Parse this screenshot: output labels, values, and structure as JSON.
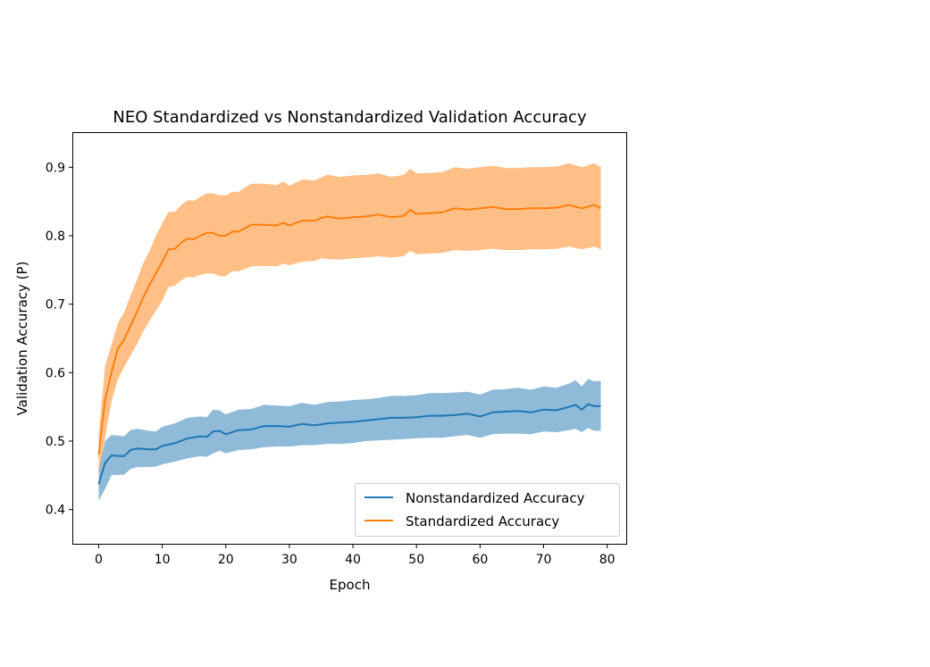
{
  "chart_data": {
    "type": "line",
    "title": "NEO Standardized vs Nonstandardized Validation Accuracy",
    "xlabel": "Epoch",
    "ylabel": "Validation Accuracy (P)",
    "xlim": [
      -4,
      83
    ],
    "ylim": [
      0.35,
      0.95
    ],
    "xticks": [
      0,
      10,
      20,
      30,
      40,
      50,
      60,
      70,
      80
    ],
    "yticks": [
      0.4,
      0.5,
      0.6,
      0.7,
      0.8,
      0.9
    ],
    "xtick_labels": [
      "0",
      "10",
      "20",
      "30",
      "40",
      "50",
      "60",
      "70",
      "80"
    ],
    "ytick_labels": [
      "0.4",
      "0.5",
      "0.6",
      "0.7",
      "0.8",
      "0.9"
    ],
    "legend_position": "lower-right",
    "grid": false,
    "series": [
      {
        "name": "Nonstandardized Accuracy",
        "color": "#1f77b4",
        "band_color": "#1f77b4",
        "x": [
          0,
          1,
          2,
          4,
          5,
          6,
          8,
          9,
          10,
          12,
          14,
          16,
          17,
          18,
          19,
          20,
          22,
          24,
          26,
          28,
          30,
          32,
          34,
          36,
          38,
          40,
          42,
          44,
          46,
          48,
          50,
          52,
          54,
          56,
          58,
          60,
          62,
          64,
          66,
          68,
          70,
          72,
          74,
          75,
          76,
          77,
          78,
          79
        ],
        "values": [
          0.437,
          0.468,
          0.479,
          0.478,
          0.487,
          0.489,
          0.488,
          0.488,
          0.493,
          0.497,
          0.504,
          0.507,
          0.506,
          0.514,
          0.515,
          0.51,
          0.516,
          0.517,
          0.522,
          0.522,
          0.521,
          0.525,
          0.523,
          0.526,
          0.527,
          0.528,
          0.53,
          0.532,
          0.534,
          0.534,
          0.535,
          0.537,
          0.537,
          0.538,
          0.54,
          0.536,
          0.542,
          0.543,
          0.544,
          0.542,
          0.546,
          0.545,
          0.55,
          0.553,
          0.546,
          0.554,
          0.551,
          0.551
        ],
        "lower": [
          0.413,
          0.43,
          0.45,
          0.451,
          0.459,
          0.462,
          0.462,
          0.463,
          0.466,
          0.47,
          0.475,
          0.478,
          0.477,
          0.482,
          0.486,
          0.482,
          0.487,
          0.488,
          0.491,
          0.492,
          0.492,
          0.494,
          0.494,
          0.496,
          0.496,
          0.497,
          0.5,
          0.501,
          0.502,
          0.503,
          0.504,
          0.505,
          0.505,
          0.507,
          0.509,
          0.505,
          0.51,
          0.511,
          0.511,
          0.51,
          0.514,
          0.513,
          0.516,
          0.518,
          0.513,
          0.519,
          0.515,
          0.515
        ],
        "upper": [
          0.458,
          0.5,
          0.509,
          0.507,
          0.516,
          0.518,
          0.515,
          0.514,
          0.521,
          0.526,
          0.534,
          0.536,
          0.535,
          0.546,
          0.545,
          0.539,
          0.546,
          0.547,
          0.553,
          0.552,
          0.551,
          0.556,
          0.553,
          0.557,
          0.558,
          0.56,
          0.561,
          0.563,
          0.566,
          0.566,
          0.567,
          0.57,
          0.57,
          0.571,
          0.572,
          0.568,
          0.575,
          0.576,
          0.578,
          0.575,
          0.58,
          0.578,
          0.584,
          0.589,
          0.58,
          0.591,
          0.587,
          0.588
        ]
      },
      {
        "name": "Standardized Accuracy",
        "color": "#ff7f0e",
        "band_color": "#ff7f0e",
        "x": [
          0,
          1,
          2,
          3,
          4,
          5,
          6,
          7,
          8,
          9,
          10,
          11,
          12,
          13,
          14,
          15,
          16,
          17,
          18,
          19,
          20,
          21,
          22,
          24,
          26,
          28,
          29,
          30,
          32,
          34,
          35,
          36,
          38,
          40,
          42,
          44,
          46,
          48,
          49,
          50,
          52,
          54,
          56,
          58,
          60,
          62,
          64,
          66,
          68,
          70,
          72,
          74,
          76,
          78,
          79
        ],
        "values": [
          0.48,
          0.56,
          0.6,
          0.635,
          0.648,
          0.668,
          0.688,
          0.71,
          0.728,
          0.745,
          0.762,
          0.78,
          0.781,
          0.79,
          0.796,
          0.795,
          0.8,
          0.804,
          0.804,
          0.8,
          0.8,
          0.806,
          0.806,
          0.816,
          0.816,
          0.815,
          0.819,
          0.815,
          0.822,
          0.822,
          0.826,
          0.828,
          0.825,
          0.827,
          0.828,
          0.831,
          0.827,
          0.829,
          0.838,
          0.832,
          0.833,
          0.834,
          0.84,
          0.838,
          0.84,
          0.842,
          0.839,
          0.839,
          0.84,
          0.84,
          0.841,
          0.845,
          0.84,
          0.845,
          0.84
        ],
        "lower": [
          0.45,
          0.505,
          0.557,
          0.59,
          0.608,
          0.625,
          0.641,
          0.66,
          0.676,
          0.69,
          0.705,
          0.725,
          0.727,
          0.735,
          0.74,
          0.739,
          0.743,
          0.745,
          0.745,
          0.741,
          0.741,
          0.748,
          0.748,
          0.755,
          0.756,
          0.755,
          0.759,
          0.757,
          0.762,
          0.763,
          0.767,
          0.766,
          0.765,
          0.767,
          0.768,
          0.77,
          0.768,
          0.77,
          0.778,
          0.773,
          0.774,
          0.775,
          0.779,
          0.778,
          0.779,
          0.781,
          0.779,
          0.779,
          0.78,
          0.78,
          0.781,
          0.784,
          0.78,
          0.784,
          0.78
        ],
        "upper": [
          0.51,
          0.61,
          0.64,
          0.672,
          0.688,
          0.712,
          0.735,
          0.76,
          0.778,
          0.8,
          0.818,
          0.835,
          0.835,
          0.845,
          0.852,
          0.851,
          0.857,
          0.862,
          0.862,
          0.859,
          0.859,
          0.864,
          0.864,
          0.876,
          0.876,
          0.874,
          0.879,
          0.873,
          0.882,
          0.881,
          0.885,
          0.889,
          0.886,
          0.888,
          0.889,
          0.891,
          0.886,
          0.889,
          0.898,
          0.891,
          0.892,
          0.893,
          0.9,
          0.898,
          0.9,
          0.902,
          0.899,
          0.899,
          0.9,
          0.9,
          0.901,
          0.906,
          0.9,
          0.906,
          0.9
        ]
      }
    ]
  }
}
